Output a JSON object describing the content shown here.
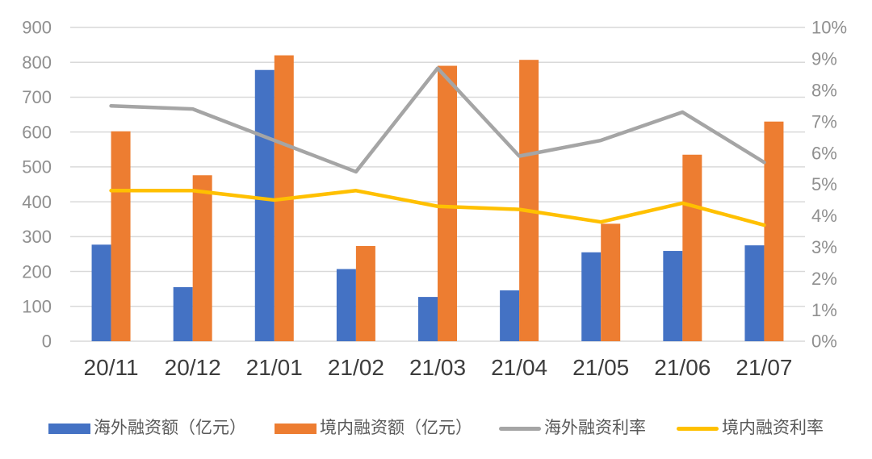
{
  "chart_data": {
    "type": "bar",
    "subtype": "combo-bar-line-dual-axis",
    "title": "",
    "categories": [
      "20/11",
      "20/12",
      "21/01",
      "21/02",
      "21/03",
      "21/04",
      "21/05",
      "21/06",
      "21/07"
    ],
    "series": [
      {
        "name": "海外融资额（亿元）",
        "type": "bar",
        "axis": "left",
        "color": "#4472C4",
        "values": [
          277,
          155,
          778,
          207,
          127,
          146,
          255,
          259,
          275
        ]
      },
      {
        "name": "境内融资额（亿元）",
        "type": "bar",
        "axis": "left",
        "color": "#ED7D31",
        "values": [
          602,
          476,
          820,
          273,
          790,
          807,
          337,
          535,
          630
        ]
      },
      {
        "name": "海外融资利率",
        "type": "line",
        "axis": "right",
        "color": "#A5A5A5",
        "values": [
          7.5,
          7.4,
          6.4,
          5.4,
          8.7,
          5.9,
          6.4,
          7.3,
          5.7
        ]
      },
      {
        "name": "境内融资利率",
        "type": "line",
        "axis": "right",
        "color": "#FFC000",
        "values": [
          4.8,
          4.8,
          4.5,
          4.8,
          4.3,
          4.2,
          3.8,
          4.4,
          3.7
        ]
      }
    ],
    "left_axis": {
      "min": 0,
      "max": 900,
      "step": 100,
      "tick_labels": [
        "0",
        "100",
        "200",
        "300",
        "400",
        "500",
        "600",
        "700",
        "800",
        "900"
      ]
    },
    "right_axis": {
      "min": 0,
      "max": 10,
      "step": 1,
      "unit": "%",
      "tick_labels": [
        "0%",
        "1%",
        "2%",
        "3%",
        "4%",
        "5%",
        "6%",
        "7%",
        "8%",
        "9%",
        "10%"
      ]
    },
    "grid": true,
    "legend_position": "bottom"
  },
  "style_colors": {
    "gridline": "#D9D9D9",
    "axis_tick_text": "#8F8F8F",
    "x_tick_text": "#3D3D3D",
    "legend_text": "#595959",
    "background": "#FFFFFF"
  }
}
